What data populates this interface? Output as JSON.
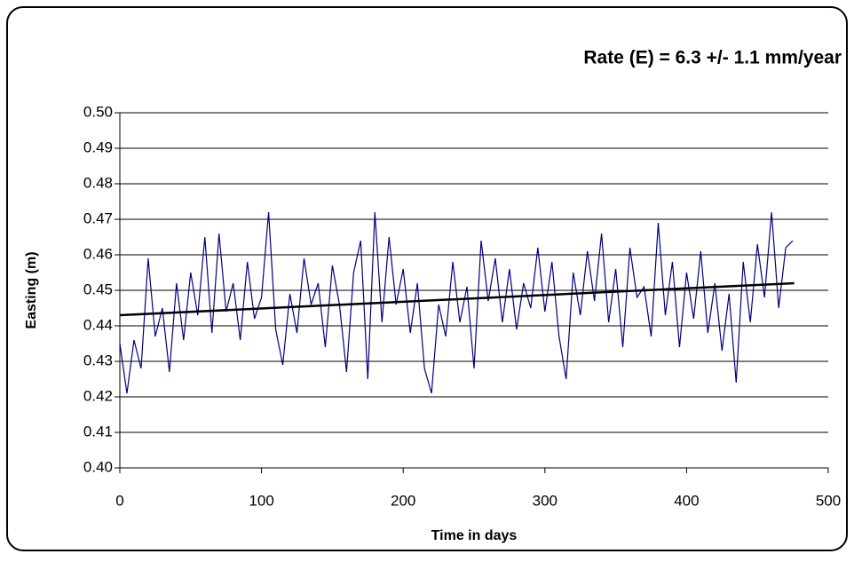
{
  "chart_data": {
    "type": "line",
    "title": "Rate (E) = 6.3 +/- 1.1 mm/year",
    "x_label": "Time in days",
    "y_label": "Easting (m)",
    "x": [
      0,
      5,
      10,
      15,
      20,
      25,
      30,
      35,
      40,
      45,
      50,
      55,
      60,
      65,
      70,
      75,
      80,
      85,
      90,
      95,
      100,
      105,
      110,
      115,
      120,
      125,
      130,
      135,
      140,
      145,
      150,
      155,
      160,
      165,
      170,
      175,
      180,
      185,
      190,
      195,
      200,
      205,
      210,
      215,
      220,
      225,
      230,
      235,
      240,
      245,
      250,
      255,
      260,
      265,
      270,
      275,
      280,
      285,
      290,
      295,
      300,
      305,
      310,
      315,
      320,
      325,
      330,
      335,
      340,
      345,
      350,
      355,
      360,
      365,
      370,
      375,
      380,
      385,
      390,
      395,
      400,
      405,
      410,
      415,
      420,
      425,
      430,
      435,
      440,
      445,
      450,
      455,
      460,
      465,
      470,
      475
    ],
    "series": [
      {
        "color": "#000080",
        "values": [
          0.435,
          0.421,
          0.436,
          0.428,
          0.459,
          0.437,
          0.445,
          0.427,
          0.452,
          0.436,
          0.455,
          0.443,
          0.465,
          0.438,
          0.466,
          0.444,
          0.452,
          0.436,
          0.458,
          0.442,
          0.448,
          0.472,
          0.439,
          0.429,
          0.449,
          0.438,
          0.459,
          0.446,
          0.452,
          0.434,
          0.457,
          0.446,
          0.427,
          0.455,
          0.464,
          0.425,
          0.472,
          0.441,
          0.465,
          0.446,
          0.456,
          0.438,
          0.452,
          0.428,
          0.421,
          0.446,
          0.437,
          0.458,
          0.441,
          0.451,
          0.428,
          0.464,
          0.447,
          0.459,
          0.441,
          0.456,
          0.439,
          0.452,
          0.445,
          0.462,
          0.444,
          0.458,
          0.437,
          0.425,
          0.455,
          0.443,
          0.461,
          0.447,
          0.466,
          0.441,
          0.456,
          0.434,
          0.462,
          0.448,
          0.451,
          0.437,
          0.469,
          0.443,
          0.458,
          0.434,
          0.455,
          0.442,
          0.461,
          0.438,
          0.452,
          0.433,
          0.449,
          0.424,
          0.458,
          0.441,
          0.463,
          0.448,
          0.472,
          0.445,
          0.462,
          0.464
        ]
      },
      {
        "color": "#000000",
        "x": [
          0,
          476
        ],
        "values": [
          0.443,
          0.452
        ]
      }
    ],
    "xlim": [
      0,
      500
    ],
    "xticks": [
      0,
      100,
      200,
      300,
      400,
      500
    ],
    "ylim": [
      0.4,
      0.5
    ],
    "yticks": [
      {
        "value": 0.4,
        "label": "0.40"
      },
      {
        "value": 0.41,
        "label": "0.41"
      },
      {
        "value": 0.42,
        "label": "0.42"
      },
      {
        "value": 0.43,
        "label": "0.43"
      },
      {
        "value": 0.44,
        "label": "0.44"
      },
      {
        "value": 0.45,
        "label": "0.45"
      },
      {
        "value": 0.46,
        "label": "0.46"
      },
      {
        "value": 0.47,
        "label": "0.47"
      },
      {
        "value": 0.48,
        "label": "0.48"
      },
      {
        "value": 0.49,
        "label": "0.49"
      },
      {
        "value": 0.5,
        "label": "0.50"
      }
    ],
    "grid": true
  }
}
